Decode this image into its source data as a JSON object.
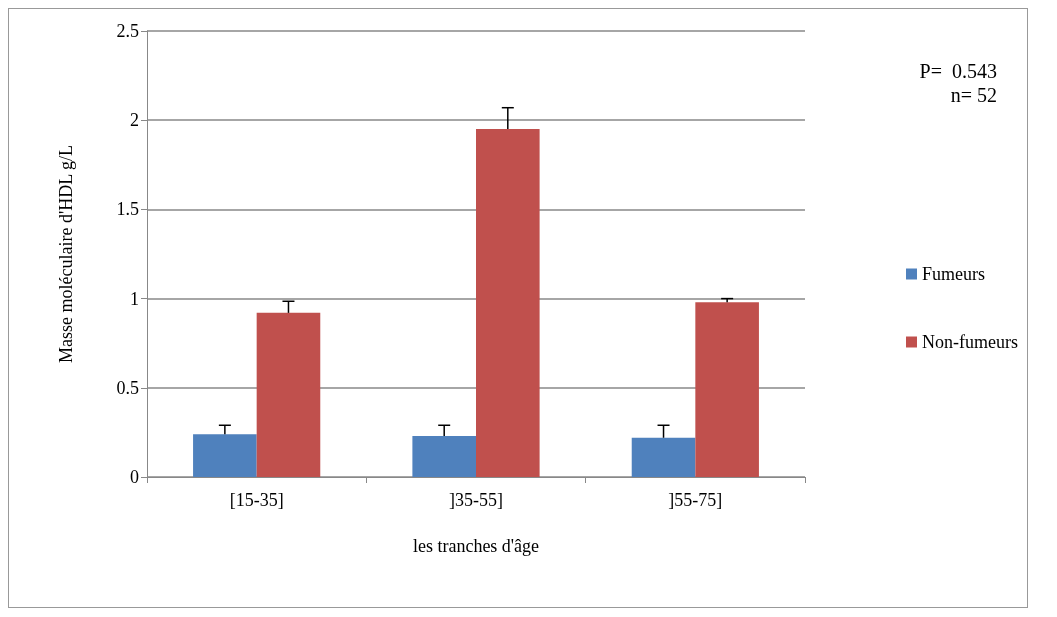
{
  "chart_data": {
    "type": "bar",
    "xlabel": "les tranches d'âge",
    "ylabel": "Masse moléculaire d'HDL g/L",
    "categories": [
      "[15-35]",
      "]35-55]",
      "]55-75]"
    ],
    "series": [
      {
        "name": "Fumeurs",
        "color": "#4f81bd",
        "values": [
          0.24,
          0.23,
          0.22
        ],
        "errors": [
          [
            0.24,
            0.29
          ],
          [
            0.23,
            0.29
          ],
          [
            0.22,
            0.29
          ]
        ]
      },
      {
        "name": "Non-fumeurs",
        "color": "#c0504d",
        "values": [
          0.92,
          1.95,
          0.98
        ],
        "errors": [
          [
            0.92,
            0.985
          ],
          [
            1.95,
            2.07
          ],
          [
            0.98,
            1.0
          ]
        ]
      }
    ],
    "ylim": [
      0,
      2.5
    ],
    "yticks": [
      0,
      0.5,
      1,
      1.5,
      2,
      2.5
    ],
    "grid": "y",
    "legend": "right",
    "annotations": [
      "P=  0.543",
      "n= 52"
    ]
  }
}
